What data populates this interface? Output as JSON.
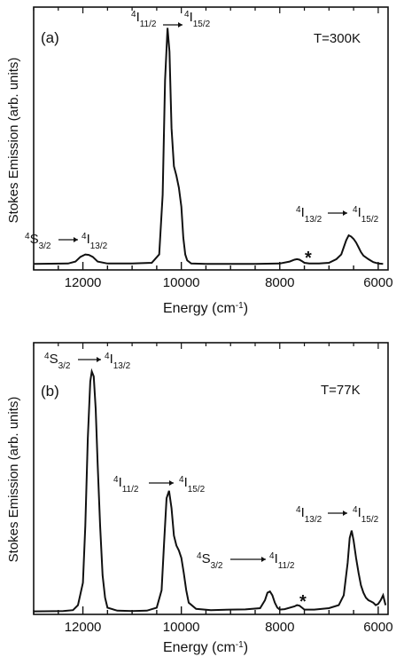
{
  "chart_data": [
    {
      "type": "line",
      "panel": "(a)",
      "condition": "T=300K",
      "xlabel": "Energy (cm-1)",
      "ylabel": "Stokes Emission (arb. units)",
      "xlim": [
        13000,
        5800
      ],
      "x_reversed": true,
      "xticks": [
        12000,
        10000,
        8000,
        6000
      ],
      "ylim": [
        0,
        1.05
      ],
      "yticks": [],
      "series": [
        {
          "x": [
            13000,
            12300,
            12150,
            12050,
            11950,
            11880,
            11800,
            11700,
            11500,
            11000,
            10600,
            10450,
            10380,
            10330,
            10280,
            10240,
            10200,
            10150,
            10100,
            10050,
            10000,
            9960,
            9920,
            9880,
            9800,
            9500,
            9000,
            8500,
            8000,
            7800,
            7700,
            7650,
            7600,
            7550,
            7500,
            7400,
            7200,
            7000,
            6850,
            6750,
            6700,
            6650,
            6600,
            6550,
            6500,
            6450,
            6400,
            6350,
            6300,
            6200,
            6100,
            6000,
            5900
          ],
          "y": [
            0.01,
            0.012,
            0.02,
            0.04,
            0.05,
            0.048,
            0.04,
            0.02,
            0.012,
            0.012,
            0.015,
            0.05,
            0.3,
            0.78,
            1.0,
            0.9,
            0.58,
            0.42,
            0.38,
            0.33,
            0.25,
            0.12,
            0.05,
            0.025,
            0.012,
            0.01,
            0.01,
            0.01,
            0.012,
            0.02,
            0.028,
            0.03,
            0.028,
            0.022,
            0.015,
            0.012,
            0.012,
            0.015,
            0.03,
            0.05,
            0.08,
            0.11,
            0.13,
            0.125,
            0.115,
            0.1,
            0.08,
            0.06,
            0.045,
            0.03,
            0.018,
            0.012,
            0.01
          ]
        }
      ],
      "annotations": [
        {
          "text": "4I11/2→4I15/2",
          "x": 10250,
          "y": 1.02
        },
        {
          "text": "4S3/2→4I13/2",
          "x": 11900,
          "y": 0.1
        },
        {
          "text": "4I13/2→4I15/2",
          "x": 6600,
          "y": 0.22
        },
        {
          "text": "*",
          "x": 7650,
          "y": 0.05
        }
      ]
    },
    {
      "type": "line",
      "panel": "(b)",
      "condition": "T=77K",
      "xlabel": "Energy (cm-1)",
      "ylabel": "Stokes Emission (arb. units)",
      "xlim": [
        13000,
        5800
      ],
      "x_reversed": true,
      "xticks": [
        12000,
        10000,
        8000,
        6000
      ],
      "ylim": [
        0,
        1.05
      ],
      "yticks": [],
      "series": [
        {
          "x": [
            13000,
            12400,
            12200,
            12100,
            12000,
            11950,
            11900,
            11850,
            11820,
            11780,
            11740,
            11700,
            11650,
            11600,
            11550,
            11500,
            11300,
            11000,
            10700,
            10500,
            10400,
            10350,
            10300,
            10250,
            10200,
            10150,
            10100,
            10050,
            10000,
            9950,
            9900,
            9850,
            9700,
            9400,
            9000,
            8700,
            8400,
            8300,
            8250,
            8200,
            8150,
            8100,
            8050,
            8000,
            7900,
            7700,
            7650,
            7600,
            7550,
            7500,
            7300,
            7000,
            6800,
            6700,
            6620,
            6580,
            6540,
            6500,
            6450,
            6400,
            6350,
            6300,
            6250,
            6200,
            6150,
            6100,
            6050,
            6000,
            5950,
            5900,
            5850
          ],
          "y": [
            0.005,
            0.006,
            0.01,
            0.03,
            0.12,
            0.35,
            0.7,
            0.93,
            0.97,
            0.95,
            0.82,
            0.6,
            0.35,
            0.15,
            0.06,
            0.02,
            0.008,
            0.006,
            0.008,
            0.02,
            0.09,
            0.28,
            0.46,
            0.49,
            0.42,
            0.31,
            0.27,
            0.25,
            0.22,
            0.16,
            0.09,
            0.04,
            0.015,
            0.01,
            0.012,
            0.013,
            0.018,
            0.05,
            0.08,
            0.085,
            0.07,
            0.04,
            0.02,
            0.012,
            0.014,
            0.025,
            0.03,
            0.028,
            0.02,
            0.012,
            0.012,
            0.018,
            0.03,
            0.07,
            0.2,
            0.3,
            0.33,
            0.29,
            0.22,
            0.16,
            0.11,
            0.08,
            0.06,
            0.05,
            0.045,
            0.04,
            0.03,
            0.035,
            0.05,
            0.07,
            0.03
          ]
        }
      ],
      "annotations": [
        {
          "text": "4S3/2→4I13/2",
          "x": 11850,
          "y": 1.0
        },
        {
          "text": "4I11/2→4I15/2",
          "x": 10300,
          "y": 0.55
        },
        {
          "text": "4S3/2→4I11/2",
          "x": 8300,
          "y": 0.14
        },
        {
          "text": "4I13/2→4I15/2",
          "x": 6500,
          "y": 0.38
        },
        {
          "text": "*",
          "x": 7600,
          "y": 0.06
        }
      ]
    }
  ]
}
